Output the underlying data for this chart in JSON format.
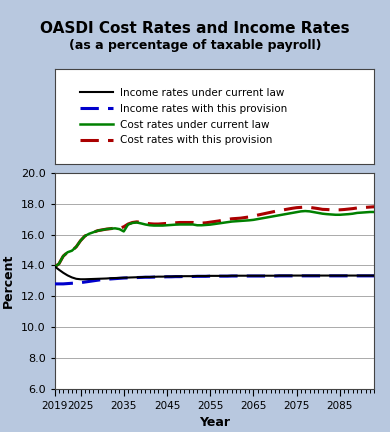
{
  "title": "OASDI Cost Rates and Income Rates",
  "subtitle": "(as a percentage of taxable payroll)",
  "xlabel": "Year",
  "ylabel": "Percent",
  "ylim": [
    6.0,
    20.0
  ],
  "yticks": [
    6.0,
    8.0,
    10.0,
    12.0,
    14.0,
    16.0,
    18.0,
    20.0
  ],
  "xlim": [
    2019,
    2093
  ],
  "xticks": [
    2019,
    2025,
    2035,
    2045,
    2055,
    2065,
    2075,
    2085
  ],
  "background_color": "#b8c8df",
  "plot_bg_color": "#ffffff",
  "legend_labels": [
    "Income rates under current law",
    "Income rates with this provision",
    "Cost rates under current law",
    "Cost rates with this provision"
  ],
  "income_current_color": "#000000",
  "income_provision_color": "#0000cc",
  "cost_current_color": "#008000",
  "cost_provision_color": "#aa0000",
  "years": [
    2019,
    2020,
    2021,
    2022,
    2023,
    2024,
    2025,
    2026,
    2027,
    2028,
    2029,
    2030,
    2031,
    2032,
    2033,
    2034,
    2035,
    2036,
    2037,
    2038,
    2039,
    2040,
    2041,
    2042,
    2043,
    2044,
    2045,
    2046,
    2047,
    2048,
    2049,
    2050,
    2051,
    2052,
    2053,
    2054,
    2055,
    2056,
    2057,
    2058,
    2059,
    2060,
    2061,
    2062,
    2063,
    2064,
    2065,
    2066,
    2067,
    2068,
    2069,
    2070,
    2071,
    2072,
    2073,
    2074,
    2075,
    2076,
    2077,
    2078,
    2079,
    2080,
    2081,
    2082,
    2083,
    2084,
    2085,
    2086,
    2087,
    2088,
    2089,
    2090,
    2091,
    2092,
    2093
  ],
  "income_current": [
    13.93,
    13.72,
    13.52,
    13.35,
    13.22,
    13.13,
    13.1,
    13.1,
    13.11,
    13.12,
    13.13,
    13.14,
    13.15,
    13.17,
    13.18,
    13.19,
    13.2,
    13.21,
    13.22,
    13.23,
    13.24,
    13.25,
    13.25,
    13.26,
    13.27,
    13.27,
    13.28,
    13.28,
    13.29,
    13.29,
    13.3,
    13.3,
    13.3,
    13.31,
    13.31,
    13.31,
    13.32,
    13.32,
    13.32,
    13.32,
    13.32,
    13.33,
    13.33,
    13.33,
    13.33,
    13.33,
    13.33,
    13.33,
    13.33,
    13.33,
    13.33,
    13.33,
    13.34,
    13.34,
    13.34,
    13.34,
    13.34,
    13.34,
    13.34,
    13.34,
    13.34,
    13.34,
    13.34,
    13.34,
    13.34,
    13.34,
    13.34,
    13.34,
    13.34,
    13.34,
    13.34,
    13.34,
    13.34,
    13.34,
    13.34
  ],
  "income_provision": [
    12.8,
    12.8,
    12.8,
    12.82,
    12.84,
    12.85,
    12.88,
    12.92,
    12.96,
    13.0,
    13.04,
    13.08,
    13.1,
    13.12,
    13.14,
    13.16,
    13.18,
    13.19,
    13.2,
    13.21,
    13.22,
    13.23,
    13.23,
    13.24,
    13.25,
    13.25,
    13.26,
    13.26,
    13.27,
    13.27,
    13.28,
    13.28,
    13.28,
    13.29,
    13.29,
    13.29,
    13.3,
    13.3,
    13.3,
    13.3,
    13.3,
    13.31,
    13.31,
    13.31,
    13.31,
    13.31,
    13.31,
    13.31,
    13.31,
    13.31,
    13.31,
    13.31,
    13.32,
    13.32,
    13.32,
    13.32,
    13.32,
    13.32,
    13.32,
    13.32,
    13.32,
    13.32,
    13.32,
    13.32,
    13.32,
    13.32,
    13.32,
    13.32,
    13.32,
    13.32,
    13.32,
    13.32,
    13.32,
    13.32,
    13.32
  ],
  "cost_current": [
    13.9,
    14.1,
    14.6,
    14.85,
    14.95,
    15.2,
    15.6,
    15.9,
    16.05,
    16.15,
    16.25,
    16.3,
    16.35,
    16.38,
    16.4,
    16.35,
    16.2,
    16.65,
    16.75,
    16.78,
    16.72,
    16.65,
    16.6,
    16.58,
    16.58,
    16.58,
    16.6,
    16.62,
    16.64,
    16.65,
    16.65,
    16.65,
    16.65,
    16.6,
    16.6,
    16.62,
    16.64,
    16.68,
    16.72,
    16.76,
    16.8,
    16.84,
    16.86,
    16.88,
    16.9,
    16.92,
    16.95,
    17.0,
    17.05,
    17.1,
    17.15,
    17.2,
    17.25,
    17.3,
    17.35,
    17.4,
    17.45,
    17.5,
    17.52,
    17.5,
    17.45,
    17.4,
    17.35,
    17.32,
    17.3,
    17.28,
    17.28,
    17.3,
    17.32,
    17.35,
    17.4,
    17.42,
    17.44,
    17.46,
    17.46
  ],
  "cost_provision": [
    13.9,
    14.1,
    14.6,
    14.85,
    14.95,
    15.2,
    15.6,
    15.9,
    16.05,
    16.15,
    16.25,
    16.3,
    16.35,
    16.38,
    16.42,
    16.4,
    16.5,
    16.68,
    16.78,
    16.82,
    16.8,
    16.74,
    16.7,
    16.68,
    16.68,
    16.7,
    16.72,
    16.74,
    16.76,
    16.78,
    16.78,
    16.78,
    16.78,
    16.74,
    16.74,
    16.76,
    16.8,
    16.84,
    16.88,
    16.94,
    16.98,
    17.02,
    17.04,
    17.06,
    17.1,
    17.14,
    17.2,
    17.26,
    17.32,
    17.38,
    17.44,
    17.5,
    17.55,
    17.6,
    17.65,
    17.7,
    17.74,
    17.76,
    17.78,
    17.76,
    17.72,
    17.68,
    17.63,
    17.62,
    17.6,
    17.6,
    17.6,
    17.62,
    17.65,
    17.68,
    17.72,
    17.74,
    17.76,
    17.78,
    17.8
  ]
}
